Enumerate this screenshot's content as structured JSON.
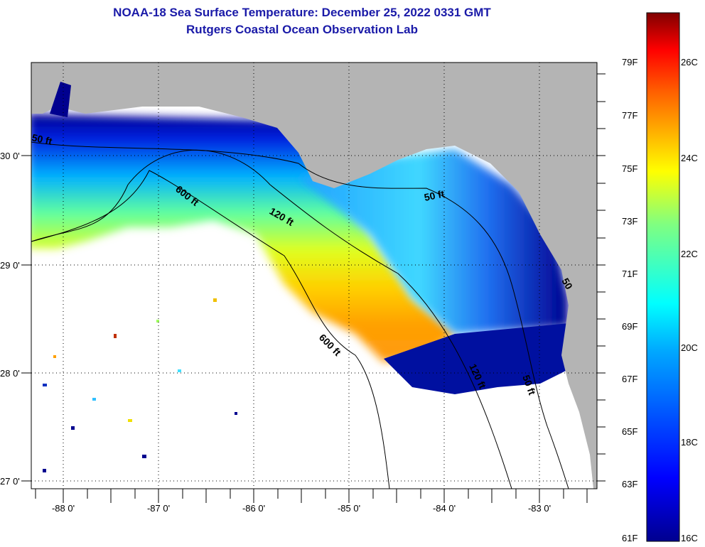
{
  "header": {
    "title": "NOAA-18 Sea Surface Temperature:  December 25, 2022 0331 GMT",
    "subtitle": "Rutgers Coastal Ocean Observation Lab"
  },
  "map": {
    "lon_labels": [
      "-88 0'",
      "-87 0'",
      "-86 0'",
      "-85 0'",
      "-84 0'",
      "-83 0'"
    ],
    "lat_labels": [
      "30 0'",
      "29 0'",
      "28 0'",
      "27 0'"
    ],
    "lon_range": [
      -88.34,
      -82.4
    ],
    "lat_range": [
      26.93,
      30.86
    ],
    "contour_labels": {
      "c50a": "50 ft",
      "c50b": "50 ft",
      "c50c": "50 ft",
      "c50d": "50",
      "c120a": "120 ft",
      "c120b": "120 ft",
      "c600a": "600 ft",
      "c600b": "600 ft"
    },
    "colors": {
      "land": "#b4b4b4",
      "no_data": "#ffffff"
    }
  },
  "colorbar": {
    "range_c": [
      16,
      27
    ],
    "f_labels": [
      "79F",
      "77F",
      "75F",
      "73F",
      "71F",
      "69F",
      "67F",
      "65F",
      "63F",
      "61F"
    ],
    "c_labels": [
      "26C",
      "24C",
      "22C",
      "20C",
      "18C",
      "16C"
    ]
  }
}
